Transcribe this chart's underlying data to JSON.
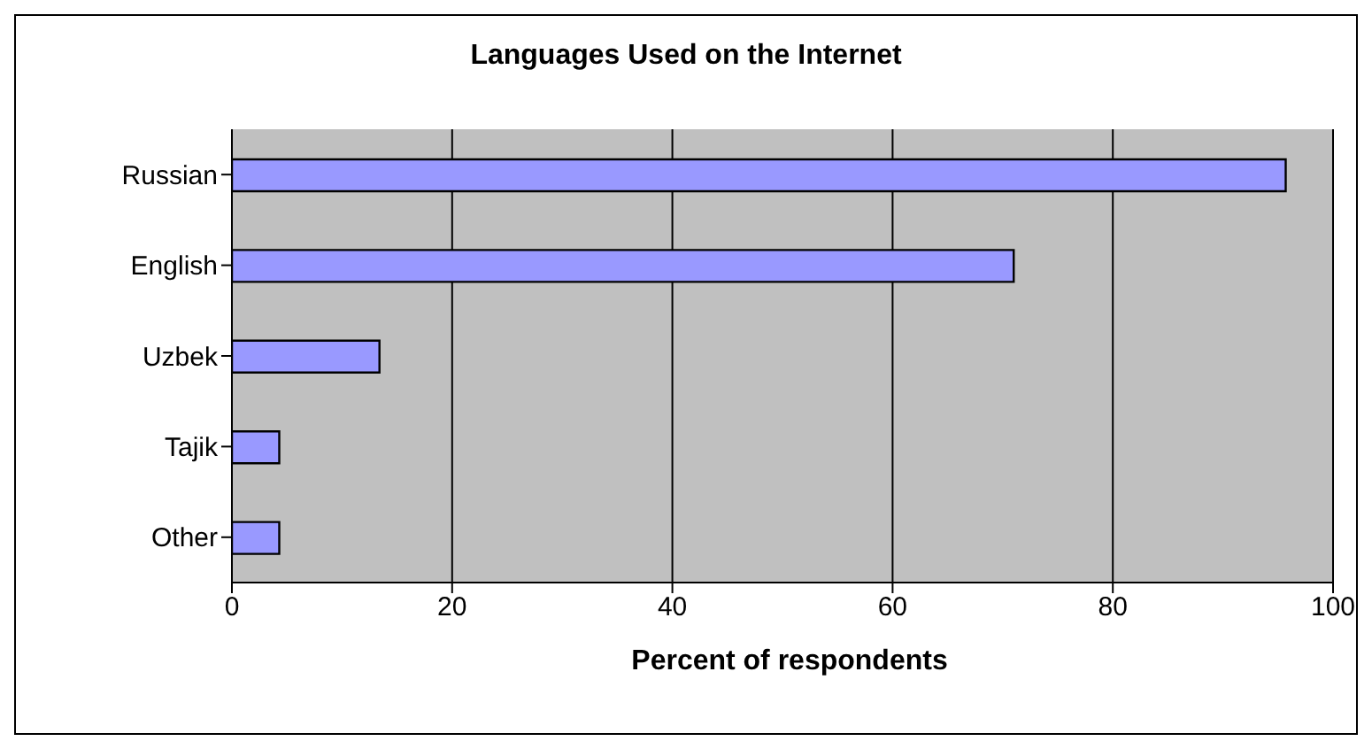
{
  "chart_data": {
    "type": "bar",
    "orientation": "horizontal",
    "title": "Languages Used on the Internet",
    "xlabel": "Percent of respondents",
    "categories": [
      "Russian",
      "English",
      "Uzbek",
      "Tajik",
      "Other"
    ],
    "values": [
      95.7,
      71,
      13.4,
      4.3,
      4.3
    ],
    "color": "#9999ff",
    "xlim": [
      0,
      100
    ],
    "xticks": [
      0,
      20,
      40,
      60,
      80,
      100
    ],
    "grid": "x"
  }
}
